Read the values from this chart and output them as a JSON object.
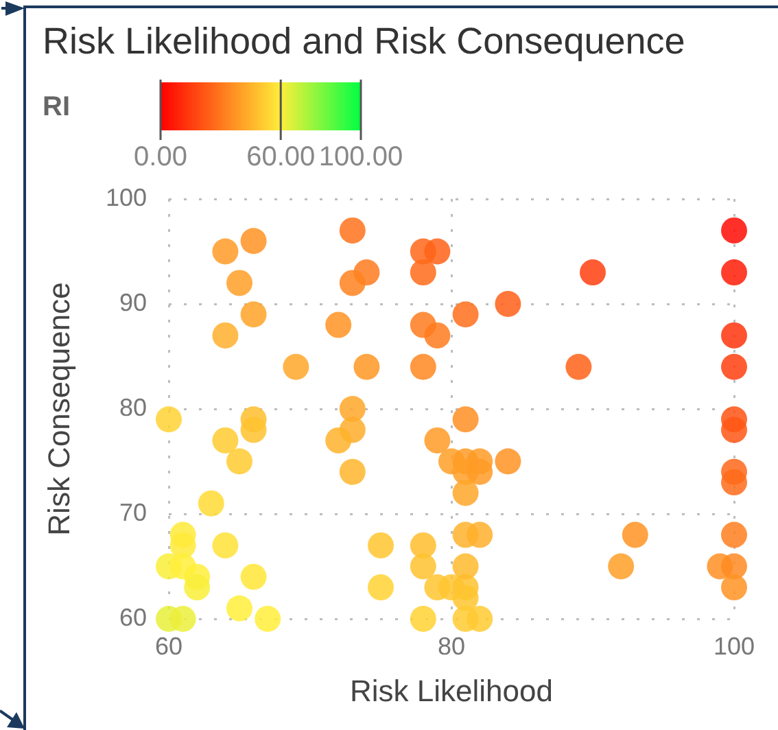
{
  "chart_data": {
    "type": "scatter",
    "title": "Risk Likelihood and Risk Consequence",
    "xlabel": "Risk Likelihood",
    "ylabel": "Risk Consequence",
    "clabel": "RI",
    "x": [
      64,
      66,
      65,
      73,
      78,
      79,
      78,
      74,
      73,
      66,
      64,
      72,
      78,
      79,
      69,
      74,
      78,
      60,
      66,
      66,
      64,
      73,
      73,
      72,
      79,
      90,
      84,
      81,
      89,
      81,
      100,
      100,
      100,
      100,
      100,
      100,
      65,
      73,
      80,
      81,
      82,
      81,
      82,
      84,
      81,
      100,
      100,
      63,
      61,
      61,
      64,
      60,
      61,
      62,
      62,
      66,
      65,
      60,
      61,
      67,
      81,
      82,
      93,
      92,
      100,
      99,
      100,
      100,
      75,
      78,
      78,
      75,
      79,
      80,
      81,
      81,
      81,
      78,
      81,
      82
    ],
    "values": [
      95,
      96,
      92,
      97,
      95,
      95,
      93,
      93,
      92,
      89,
      87,
      88,
      88,
      87,
      84,
      84,
      84,
      79,
      79,
      78,
      77,
      80,
      78,
      77,
      77,
      93,
      90,
      89,
      84,
      79,
      97,
      93,
      87,
      84,
      79,
      78,
      75,
      74,
      75,
      75,
      75,
      74,
      74,
      75,
      72,
      74,
      73,
      71,
      68,
      67,
      67,
      65,
      65,
      64,
      63,
      64,
      61,
      60,
      60,
      60,
      68,
      68,
      68,
      65,
      68,
      65,
      65,
      63,
      67,
      67,
      65,
      63,
      63,
      63,
      63,
      65,
      62,
      60,
      60,
      60
    ],
    "cvalues": [
      39,
      37,
      40,
      29,
      26,
      25,
      27,
      31,
      33,
      41,
      44,
      37,
      31,
      31,
      42,
      38,
      34,
      53,
      48,
      49,
      51,
      42,
      43,
      45,
      39,
      16,
      24,
      28,
      25,
      36,
      3,
      7,
      13,
      16,
      21,
      22,
      51,
      46,
      40,
      39,
      39,
      40,
      39,
      37,
      42,
      26,
      27,
      55,
      59,
      59,
      57,
      61,
      60,
      60,
      61,
      58,
      60,
      64,
      63,
      60,
      45,
      44,
      37,
      40,
      32,
      36,
      35,
      37,
      50,
      48,
      49,
      53,
      50,
      50,
      49,
      47,
      50,
      53,
      51,
      51
    ],
    "clim": [
      0,
      100
    ],
    "cticks": [
      {
        "value": 0,
        "label": "0.00"
      },
      {
        "value": 60,
        "label": "60.00"
      },
      {
        "value": 100,
        "label": "100.00"
      }
    ],
    "xlim": [
      60,
      100
    ],
    "ylim": [
      60,
      100
    ],
    "xticks": [
      60,
      80,
      100
    ],
    "yticks": [
      60,
      70,
      80,
      90,
      100
    ],
    "grid": true,
    "marker": "circle"
  }
}
